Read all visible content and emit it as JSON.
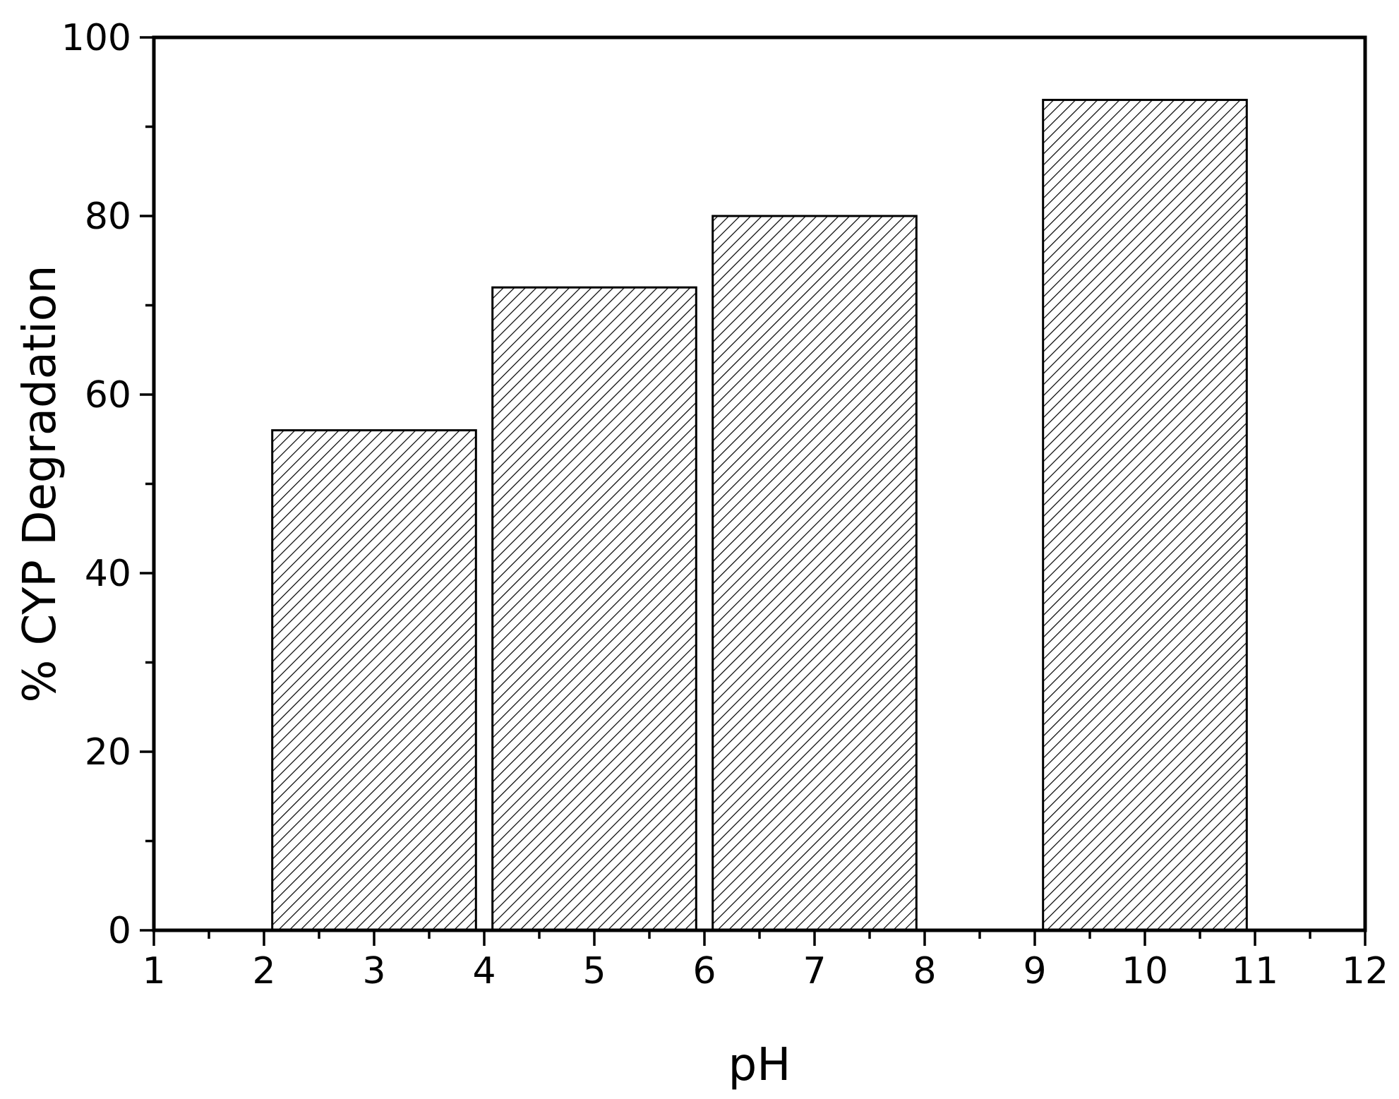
{
  "chart_data": {
    "type": "bar",
    "x": [
      3,
      5,
      7,
      10
    ],
    "values": [
      56,
      72,
      80,
      93
    ],
    "bar_width": 1.85,
    "xlabel": "pH",
    "ylabel": "% CYP Degradation",
    "xlim": [
      1,
      12
    ],
    "ylim": [
      0,
      100
    ],
    "xticks": [
      1,
      2,
      3,
      4,
      5,
      6,
      7,
      8,
      9,
      10,
      11,
      12
    ],
    "yticks": [
      0,
      20,
      40,
      60,
      80,
      100
    ],
    "grid": false,
    "legend": "none",
    "bar_fill": "diagonal-hatch",
    "colors": {
      "bar_stroke": "#000000",
      "hatch": "#000000",
      "background": "#ffffff"
    }
  }
}
